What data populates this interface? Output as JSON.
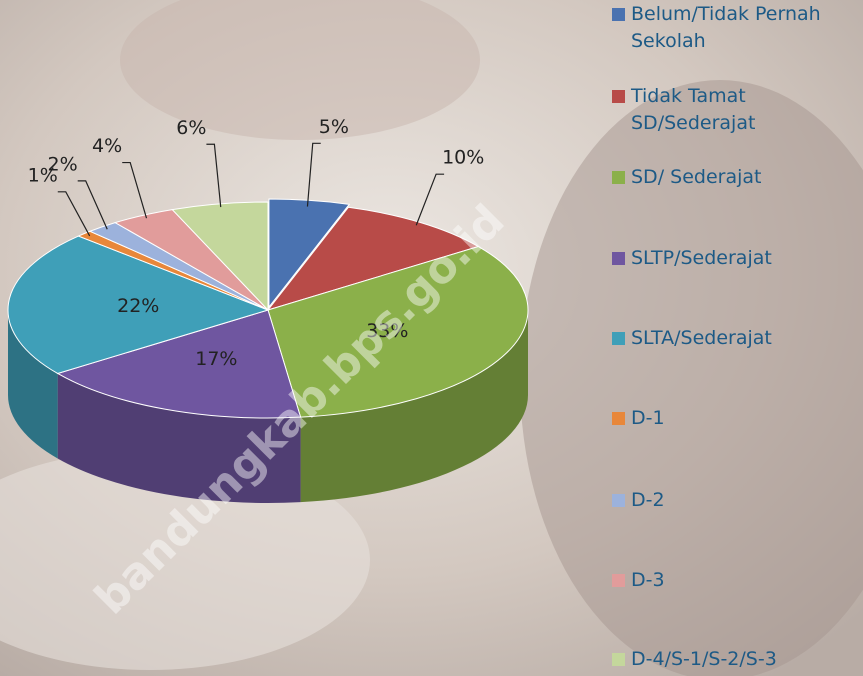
{
  "chart_data": {
    "type": "pie",
    "categories": [
      "Belum/Tidak Pernah Sekolah",
      "Tidak Tamat SD/Sederajat",
      "SD/ Sederajat",
      "SLTP/Sederajat",
      "SLTA/Sederajat",
      "D-1",
      "D-2",
      "D-3",
      "D-4/S-1/S-2/S-3"
    ],
    "values": [
      5,
      10,
      33,
      17,
      22,
      1,
      2,
      4,
      6
    ],
    "value_labels": [
      "5%",
      "10%",
      "33%",
      "17%",
      "22%",
      "1%",
      "2%",
      "4%",
      "6%"
    ],
    "colors": [
      "#4a72b0",
      "#b84b48",
      "#8bb04a",
      "#6f56a0",
      "#3f9fb8",
      "#e8873a",
      "#9cb2dc",
      "#e19c9b",
      "#c4d79c"
    ],
    "legend": "right",
    "watermark": "bandungkab.bps.go.id"
  }
}
